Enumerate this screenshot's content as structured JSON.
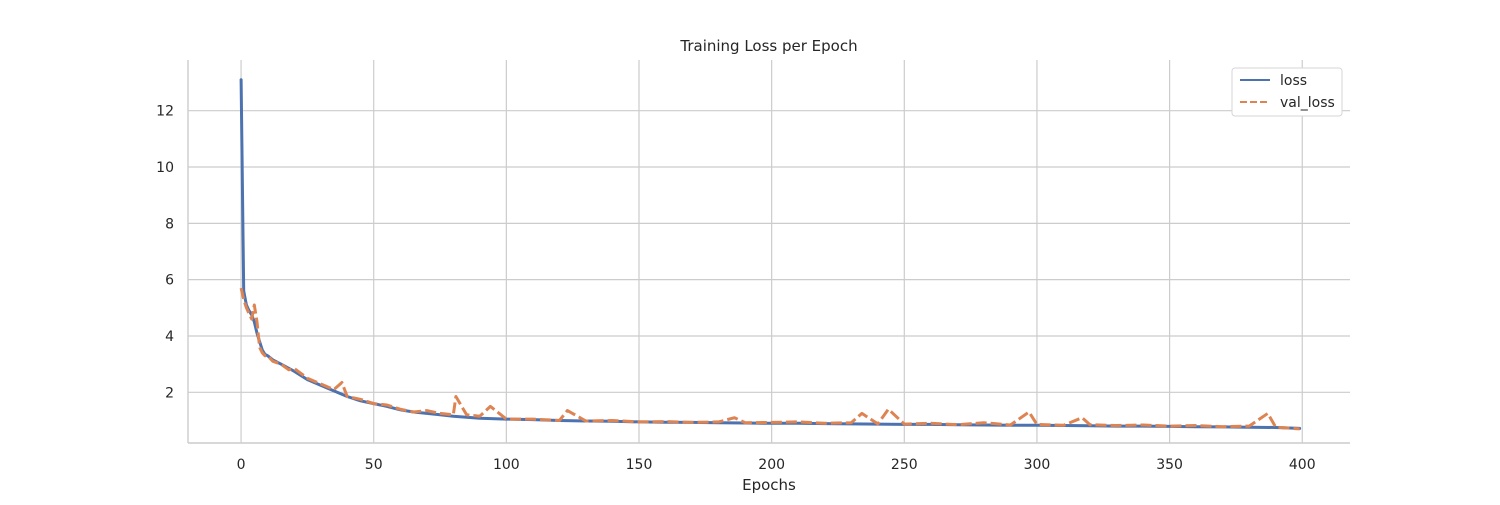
{
  "chart_data": {
    "type": "line",
    "title": "Training Loss per Epoch",
    "xlabel": "Epochs",
    "ylabel": "",
    "xlim": [
      -20,
      418
    ],
    "ylim": [
      0.2,
      13.8
    ],
    "xticks": [
      0,
      50,
      100,
      150,
      200,
      250,
      300,
      350,
      400
    ],
    "yticks": [
      2,
      4,
      6,
      8,
      10,
      12
    ],
    "grid": true,
    "legend_position": "top-right",
    "series": [
      {
        "name": "loss",
        "color": "#4c72b0",
        "dash": "solid",
        "x": [
          0,
          1,
          2,
          3,
          4,
          5,
          6,
          7,
          8,
          9,
          10,
          12,
          15,
          20,
          25,
          30,
          35,
          40,
          45,
          50,
          55,
          60,
          65,
          70,
          75,
          80,
          90,
          100,
          110,
          120,
          130,
          140,
          150,
          160,
          170,
          180,
          190,
          200,
          210,
          220,
          230,
          240,
          250,
          260,
          270,
          280,
          290,
          300,
          310,
          320,
          330,
          340,
          350,
          360,
          370,
          380,
          390,
          399
        ],
        "y": [
          13.1,
          5.6,
          5.1,
          4.9,
          4.75,
          4.5,
          4.1,
          3.8,
          3.5,
          3.35,
          3.3,
          3.15,
          3.0,
          2.75,
          2.45,
          2.25,
          2.05,
          1.85,
          1.7,
          1.6,
          1.5,
          1.38,
          1.3,
          1.25,
          1.2,
          1.15,
          1.08,
          1.05,
          1.03,
          1.0,
          0.98,
          0.97,
          0.95,
          0.94,
          0.93,
          0.92,
          0.91,
          0.9,
          0.9,
          0.89,
          0.88,
          0.87,
          0.86,
          0.86,
          0.85,
          0.84,
          0.83,
          0.83,
          0.82,
          0.81,
          0.8,
          0.8,
          0.79,
          0.78,
          0.77,
          0.76,
          0.75,
          0.72
        ]
      },
      {
        "name": "val_loss",
        "color": "#dd8452",
        "dash": "dashed",
        "x": [
          0,
          1,
          2,
          3,
          4,
          5,
          6,
          7,
          8,
          9,
          10,
          12,
          15,
          18,
          20,
          25,
          30,
          35,
          38,
          40,
          45,
          50,
          55,
          60,
          65,
          70,
          75,
          80,
          81,
          85,
          90,
          94,
          100,
          110,
          120,
          123,
          130,
          140,
          150,
          160,
          170,
          180,
          186,
          190,
          200,
          210,
          220,
          230,
          234,
          240,
          244,
          250,
          260,
          270,
          280,
          290,
          297,
          300,
          310,
          317,
          320,
          330,
          340,
          350,
          360,
          370,
          380,
          387,
          390,
          399
        ],
        "y": [
          5.7,
          5.3,
          5.0,
          4.8,
          4.6,
          5.1,
          4.5,
          3.6,
          3.4,
          3.3,
          3.3,
          3.1,
          3.0,
          2.8,
          2.85,
          2.5,
          2.3,
          2.1,
          2.35,
          1.85,
          1.75,
          1.6,
          1.55,
          1.4,
          1.3,
          1.35,
          1.25,
          1.2,
          1.85,
          1.2,
          1.15,
          1.5,
          1.05,
          1.05,
          1.0,
          1.35,
          0.98,
          1.0,
          0.95,
          0.96,
          0.93,
          0.95,
          1.1,
          0.92,
          0.93,
          0.95,
          0.9,
          0.92,
          1.25,
          0.88,
          1.4,
          0.87,
          0.9,
          0.85,
          0.92,
          0.84,
          1.3,
          0.86,
          0.83,
          1.1,
          0.85,
          0.82,
          0.84,
          0.8,
          0.82,
          0.78,
          0.8,
          1.25,
          0.76,
          0.7
        ]
      }
    ]
  }
}
